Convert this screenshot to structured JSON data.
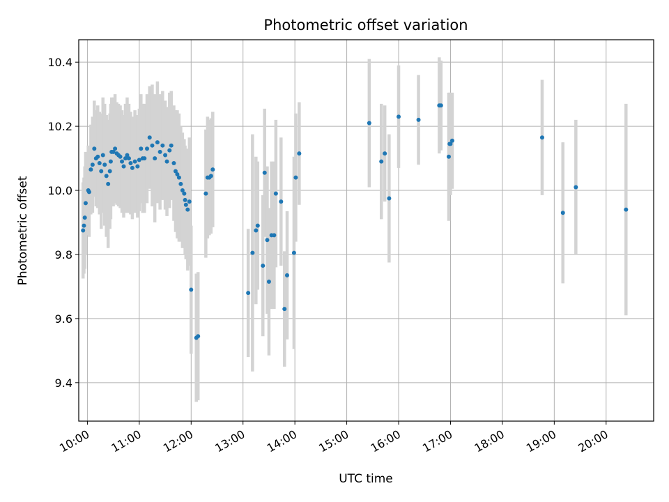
{
  "chart_data": {
    "type": "scatter",
    "title": "Photometric offset variation",
    "xlabel": "UTC time",
    "ylabel": "Photometric offset",
    "xlim": [
      "09:50",
      "20:55"
    ],
    "ylim": [
      9.28,
      10.47
    ],
    "x_ticks": [
      "10:00",
      "11:00",
      "12:00",
      "13:00",
      "14:00",
      "15:00",
      "16:00",
      "17:00",
      "18:00",
      "19:00",
      "20:00"
    ],
    "y_ticks": [
      9.4,
      9.6,
      9.8,
      10.0,
      10.2,
      10.4
    ],
    "y_tick_labels": [
      "9.4",
      "9.6",
      "9.8",
      "10.0",
      "10.2",
      "10.4"
    ],
    "grid": true,
    "point_color": "#1f77b4",
    "errorbar_color": "#d3d3d3",
    "series": [
      {
        "x": [
          "09:55",
          "09:56",
          "09:57",
          "09:58",
          "10:01",
          "10:02",
          "10:04",
          "10:06",
          "10:08",
          "10:10",
          "10:12",
          "10:14",
          "10:16",
          "10:18",
          "10:20",
          "10:22",
          "10:24",
          "10:26",
          "10:27",
          "10:28",
          "10:30",
          "10:32",
          "10:34",
          "10:36",
          "10:38",
          "10:40",
          "10:42",
          "10:44",
          "10:46",
          "10:48",
          "10:50",
          "10:52",
          "10:55",
          "10:58",
          "11:00",
          "11:02",
          "11:04",
          "11:06",
          "11:09",
          "11:12",
          "11:15",
          "11:18",
          "11:21",
          "11:24",
          "11:27",
          "11:30",
          "11:32",
          "11:35",
          "11:37",
          "11:40",
          "11:42",
          "11:44",
          "11:46",
          "11:48",
          "11:50",
          "11:52",
          "11:53",
          "11:54",
          "11:56",
          "11:58",
          "12:00",
          "12:06",
          "12:08",
          "12:17",
          "12:19",
          "12:21",
          "12:23",
          "12:25",
          "13:06",
          "13:11",
          "13:15",
          "13:17",
          "13:23",
          "13:25",
          "13:28",
          "13:30",
          "13:33",
          "13:36",
          "13:38",
          "13:44",
          "13:48",
          "13:51",
          "13:59",
          "14:01",
          "14:05",
          "15:26",
          "15:40",
          "15:44",
          "15:49",
          "16:00",
          "16:23",
          "16:47",
          "16:49",
          "16:58",
          "16:59",
          "17:00",
          "17:02",
          "18:46",
          "19:10",
          "19:25",
          "20:23"
        ],
        "y": [
          9.875,
          9.89,
          9.915,
          9.96,
          10.0,
          9.995,
          10.065,
          10.08,
          10.13,
          10.1,
          10.105,
          10.085,
          10.06,
          10.11,
          10.08,
          10.045,
          10.02,
          10.06,
          10.09,
          10.12,
          10.12,
          10.13,
          10.115,
          10.11,
          10.105,
          10.09,
          10.075,
          10.1,
          10.11,
          10.1,
          10.085,
          10.07,
          10.09,
          10.075,
          10.095,
          10.13,
          10.1,
          10.1,
          10.13,
          10.165,
          10.14,
          10.1,
          10.15,
          10.12,
          10.14,
          10.11,
          10.09,
          10.125,
          10.14,
          10.085,
          10.06,
          10.05,
          10.04,
          10.02,
          10.0,
          9.99,
          9.97,
          9.955,
          9.94,
          9.965,
          9.69,
          9.54,
          9.545,
          9.99,
          10.04,
          10.04,
          10.045,
          10.065,
          9.68,
          9.805,
          9.875,
          9.89,
          9.765,
          10.055,
          9.845,
          9.715,
          9.86,
          9.86,
          9.99,
          9.965,
          9.63,
          9.735,
          9.805,
          10.04,
          10.115,
          10.21,
          10.09,
          10.115,
          9.975,
          10.23,
          10.22,
          10.265,
          10.265,
          10.105,
          10.145,
          10.145,
          10.155,
          10.165,
          9.93,
          10.01,
          9.94
        ],
        "err": [
          0.15,
          0.15,
          0.16,
          0.16,
          0.14,
          0.14,
          0.14,
          0.15,
          0.15,
          0.15,
          0.16,
          0.16,
          0.18,
          0.18,
          0.19,
          0.19,
          0.2,
          0.18,
          0.18,
          0.17,
          0.17,
          0.17,
          0.16,
          0.16,
          0.16,
          0.16,
          0.16,
          0.17,
          0.18,
          0.17,
          0.16,
          0.16,
          0.16,
          0.16,
          0.16,
          0.17,
          0.17,
          0.17,
          0.17,
          0.16,
          0.19,
          0.2,
          0.19,
          0.18,
          0.17,
          0.17,
          0.17,
          0.18,
          0.17,
          0.18,
          0.19,
          0.2,
          0.2,
          0.18,
          0.18,
          0.17,
          0.17,
          0.17,
          0.19,
          0.2,
          0.2,
          0.2,
          0.2,
          0.2,
          0.19,
          0.18,
          0.18,
          0.18,
          0.2,
          0.37,
          0.23,
          0.2,
          0.22,
          0.2,
          0.23,
          0.23,
          0.23,
          0.23,
          0.23,
          0.2,
          0.18,
          0.2,
          0.3,
          0.2,
          0.16,
          0.2,
          0.18,
          0.15,
          0.2,
          0.16,
          0.14,
          0.15,
          0.14,
          0.2,
          0.16,
          0.16,
          0.15,
          0.18,
          0.22,
          0.21,
          0.33
        ]
      }
    ]
  }
}
